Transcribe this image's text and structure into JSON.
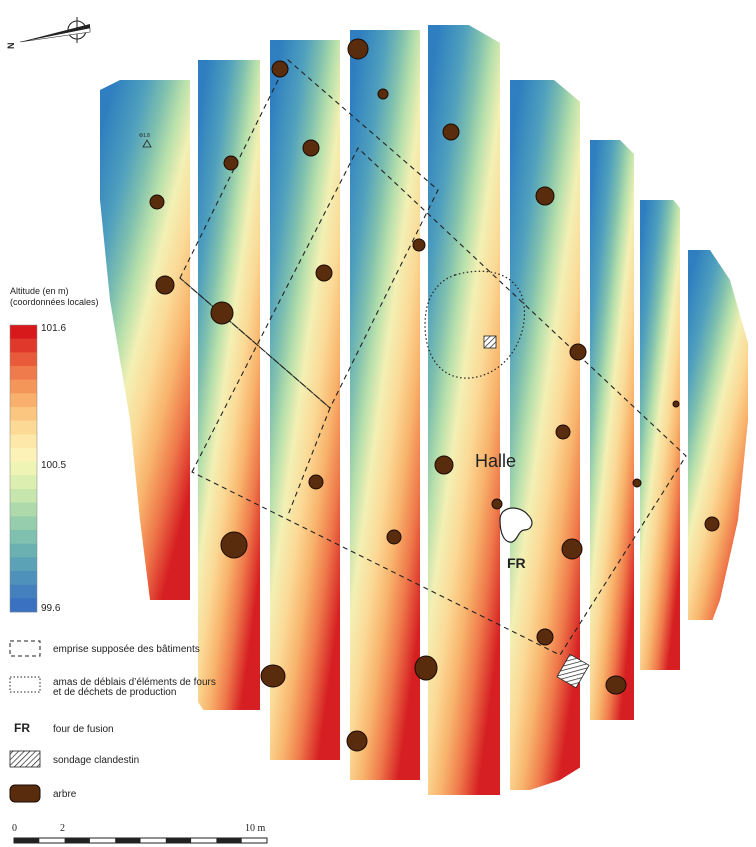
{
  "map": {
    "area_label": "Halle",
    "furnace_label": "FR",
    "north_label": "N",
    "station_label": "Φ1.8"
  },
  "legend": {
    "altitude_title_line1": "Altitude (en m)",
    "altitude_title_line2": "(coordonnées locales)",
    "max_value": "101.6",
    "mid_value": "100.5",
    "min_value": "99.6",
    "colors": [
      "#d7191c",
      "#e0392b",
      "#e85a3a",
      "#ef7a4b",
      "#f4965a",
      "#f8b06c",
      "#fbc780",
      "#fcd995",
      "#fde7a9",
      "#fcf2b8",
      "#eef4b4",
      "#dcefb0",
      "#c6e6ad",
      "#aedaab",
      "#96cdac",
      "#7fc0ae",
      "#6bb1b1",
      "#5ba2b6",
      "#4e91ba",
      "#4480bd",
      "#3a71c0"
    ],
    "items": [
      {
        "symbol": "dashed",
        "label": "emprise supposée des bâtiments"
      },
      {
        "symbol": "dotted",
        "label": "amas de déblais d’éléments de fours",
        "label2": "et de déchets de production"
      },
      {
        "symbol": "fr",
        "symbol_text": "FR",
        "label": "four de fusion"
      },
      {
        "symbol": "hatch",
        "label": "sondage clandestin"
      },
      {
        "symbol": "tree",
        "label": "arbre"
      }
    ]
  },
  "scale": {
    "ticks": [
      "0",
      "2",
      "10 m"
    ]
  },
  "colors": {
    "tree_fill": "#5a2c0e",
    "tree_stroke": "#1a0a02",
    "low": "#3a7fc0",
    "mid": "#f7eeb0",
    "high": "#d7191c"
  }
}
